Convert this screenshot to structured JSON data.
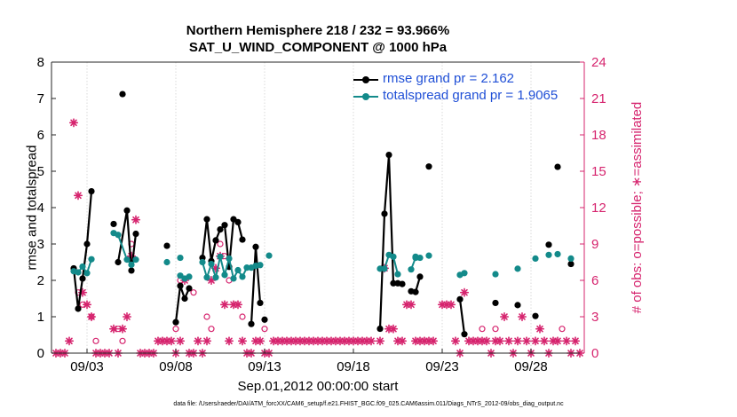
{
  "chart_data": {
    "type": "line",
    "title": "Northern Hemisphere 218 / 232 = 93.966%",
    "subtitle": "SAT_U_WIND_COMPONENT @ 1000 hPa",
    "xlabel": "Sep.01,2012 00:00:00 start",
    "ylabel": "rmse and totalspread",
    "y2label": "# of obs: o=possible; ∗=assimilated",
    "footer": "data file: /Users/raeder/DAI/ATM_forcXX/CAM6_setup/f.e21.FHIST_BGC.f09_025.CAM6assim.011/Diags_NTrS_2012-09/obs_diag_output.nc",
    "xlim": [
      0.5,
      30.5
    ],
    "ylim": [
      0,
      8
    ],
    "y2lim": [
      0,
      24
    ],
    "x_ticks": [
      2.5,
      7.5,
      12.5,
      17.5,
      22.5,
      27.5
    ],
    "x_tick_labels": [
      "09/03",
      "09/08",
      "09/13",
      "09/18",
      "09/23",
      "09/28"
    ],
    "y_ticks": [
      0,
      1,
      2,
      3,
      4,
      5,
      6,
      7,
      8
    ],
    "y2_ticks": [
      0,
      3,
      6,
      9,
      12,
      15,
      18,
      21,
      24
    ],
    "legend_position": "top-right",
    "series": [
      {
        "name": "rmse grand pr = 2.162",
        "color": "#000000",
        "segments": [
          [
            [
              1.75,
              2.33
            ],
            [
              2.0,
              1.22
            ],
            [
              2.25,
              2.05
            ],
            [
              2.5,
              3.0
            ],
            [
              2.75,
              4.45
            ]
          ],
          [
            [
              4.25,
              2.5
            ],
            [
              4.75,
              3.92
            ],
            [
              5.0,
              2.27
            ],
            [
              5.25,
              3.28
            ]
          ],
          [
            [
              7.5,
              0.85
            ],
            [
              7.75,
              1.85
            ],
            [
              8.0,
              1.5
            ],
            [
              8.25,
              1.78
            ]
          ],
          [
            [
              9.0,
              2.62
            ],
            [
              9.25,
              3.68
            ],
            [
              9.5,
              2.53
            ],
            [
              9.75,
              3.1
            ],
            [
              10.0,
              3.4
            ],
            [
              10.25,
              3.52
            ],
            [
              10.5,
              2.37
            ],
            [
              10.75,
              3.68
            ],
            [
              11.0,
              3.6
            ],
            [
              11.25,
              3.12
            ]
          ],
          [
            [
              11.75,
              0.8
            ],
            [
              12.0,
              2.92
            ],
            [
              12.25,
              1.38
            ]
          ],
          [
            [
              19.0,
              0.67
            ],
            [
              19.25,
              3.83
            ],
            [
              19.5,
              5.45
            ],
            [
              19.75,
              1.92
            ],
            [
              20.0,
              1.92
            ],
            [
              20.25,
              1.9
            ]
          ],
          [
            [
              20.75,
              1.7
            ],
            [
              21.0,
              1.68
            ],
            [
              21.25,
              2.1
            ]
          ],
          [
            [
              23.5,
              1.48
            ],
            [
              23.75,
              0.52
            ]
          ],
          [
            [
              29.75,
              2.45
            ]
          ]
        ],
        "isolated_points": [
          [
            4.0,
            3.55
          ],
          [
            4.5,
            7.12
          ],
          [
            7.0,
            2.95
          ],
          [
            21.75,
            5.13
          ],
          [
            12.5,
            0.92
          ],
          [
            25.5,
            1.38
          ],
          [
            26.75,
            1.32
          ],
          [
            27.75,
            1.02
          ],
          [
            28.5,
            2.98
          ],
          [
            29.0,
            5.12
          ]
        ]
      },
      {
        "name": "totalspread grand pr = 1.9065",
        "color": "#138a8a",
        "segments": [
          [
            [
              1.75,
              2.25
            ],
            [
              2.0,
              2.22
            ],
            [
              2.25,
              2.38
            ],
            [
              2.5,
              2.2
            ],
            [
              2.75,
              2.58
            ]
          ],
          [
            [
              4.25,
              3.25
            ],
            [
              4.75,
              2.57
            ],
            [
              5.0,
              2.43
            ],
            [
              5.25,
              2.57
            ]
          ],
          [
            [
              7.75,
              2.13
            ],
            [
              8.0,
              2.05
            ],
            [
              8.25,
              2.1
            ]
          ],
          [
            [
              9.0,
              2.5
            ],
            [
              9.25,
              2.08
            ],
            [
              9.5,
              2.45
            ],
            [
              9.75,
              2.08
            ],
            [
              10.0,
              2.65
            ],
            [
              10.25,
              2.15
            ],
            [
              10.5,
              2.6
            ],
            [
              10.75,
              2.05
            ],
            [
              11.0,
              2.28
            ],
            [
              11.25,
              2.1
            ],
            [
              11.5,
              2.35
            ],
            [
              11.75,
              2.35
            ],
            [
              12.0,
              2.4
            ],
            [
              12.25,
              2.42
            ]
          ],
          [
            [
              19.0,
              2.32
            ],
            [
              19.25,
              2.32
            ],
            [
              19.5,
              2.7
            ],
            [
              19.75,
              2.65
            ],
            [
              20.0,
              2.17
            ]
          ],
          [
            [
              20.75,
              2.3
            ],
            [
              21.0,
              2.62
            ],
            [
              21.25,
              2.62
            ]
          ],
          [
            [
              23.5,
              2.15
            ],
            [
              23.75,
              2.2
            ]
          ]
        ],
        "isolated_points": [
          [
            4.0,
            3.3
          ],
          [
            7.0,
            2.5
          ],
          [
            7.75,
            2.62
          ],
          [
            12.75,
            2.68
          ],
          [
            21.0,
            2.65
          ],
          [
            21.75,
            2.68
          ],
          [
            25.5,
            2.17
          ],
          [
            26.75,
            2.32
          ],
          [
            27.75,
            2.6
          ],
          [
            28.5,
            2.7
          ],
          [
            29.0,
            2.72
          ],
          [
            29.75,
            2.6
          ]
        ]
      }
    ],
    "obs_series": [
      {
        "name": "possible",
        "marker": "o",
        "color": "#d6246e",
        "points": [
          [
            2.0,
            5
          ],
          [
            2.25,
            4
          ],
          [
            2.75,
            3
          ],
          [
            3.0,
            1
          ],
          [
            4.25,
            2
          ],
          [
            4.5,
            1
          ],
          [
            5.0,
            9
          ],
          [
            7.5,
            2
          ],
          [
            7.75,
            6
          ],
          [
            8.5,
            5
          ],
          [
            9.25,
            3
          ],
          [
            9.5,
            2
          ],
          [
            10.0,
            9
          ],
          [
            10.25,
            8
          ],
          [
            10.5,
            6
          ],
          [
            11.25,
            3
          ],
          [
            12.5,
            2
          ],
          [
            24.75,
            2
          ],
          [
            25.5,
            2
          ],
          [
            29.25,
            2
          ]
        ]
      },
      {
        "name": "assimilated",
        "marker": "*",
        "color": "#d6246e",
        "points": [
          [
            0.75,
            0
          ],
          [
            1.0,
            0
          ],
          [
            1.25,
            0
          ],
          [
            1.5,
            1
          ],
          [
            1.75,
            19
          ],
          [
            2.0,
            13
          ],
          [
            2.25,
            5
          ],
          [
            2.5,
            4
          ],
          [
            2.75,
            3
          ],
          [
            3.0,
            0
          ],
          [
            3.25,
            0
          ],
          [
            3.5,
            0
          ],
          [
            3.75,
            0
          ],
          [
            4.0,
            2
          ],
          [
            4.25,
            0
          ],
          [
            4.5,
            2
          ],
          [
            4.75,
            3
          ],
          [
            5.0,
            8
          ],
          [
            5.25,
            11
          ],
          [
            5.5,
            0
          ],
          [
            5.75,
            0
          ],
          [
            6.0,
            0
          ],
          [
            6.25,
            0
          ],
          [
            6.5,
            1
          ],
          [
            6.75,
            1
          ],
          [
            7.0,
            1
          ],
          [
            7.25,
            1
          ],
          [
            7.5,
            0
          ],
          [
            7.75,
            1
          ],
          [
            8.0,
            6
          ],
          [
            8.25,
            0
          ],
          [
            8.5,
            0
          ],
          [
            8.75,
            1
          ],
          [
            9.0,
            0
          ],
          [
            9.25,
            1
          ],
          [
            9.5,
            6
          ],
          [
            9.75,
            7
          ],
          [
            10.0,
            8
          ],
          [
            10.25,
            4
          ],
          [
            10.5,
            1
          ],
          [
            10.75,
            4
          ],
          [
            11.0,
            4
          ],
          [
            11.25,
            1
          ],
          [
            11.5,
            0
          ],
          [
            11.75,
            0
          ],
          [
            12.0,
            1
          ],
          [
            12.25,
            1
          ],
          [
            12.5,
            0
          ],
          [
            12.75,
            0
          ],
          [
            13.0,
            1
          ],
          [
            13.25,
            1
          ],
          [
            13.5,
            1
          ],
          [
            13.75,
            1
          ],
          [
            14.0,
            1
          ],
          [
            14.25,
            1
          ],
          [
            14.5,
            1
          ],
          [
            14.75,
            1
          ],
          [
            15.0,
            1
          ],
          [
            15.25,
            1
          ],
          [
            15.5,
            1
          ],
          [
            15.75,
            1
          ],
          [
            16.0,
            1
          ],
          [
            16.25,
            1
          ],
          [
            16.5,
            1
          ],
          [
            16.75,
            1
          ],
          [
            17.0,
            1
          ],
          [
            17.25,
            1
          ],
          [
            17.5,
            1
          ],
          [
            17.75,
            1
          ],
          [
            18.0,
            1
          ],
          [
            18.25,
            1
          ],
          [
            18.5,
            1
          ],
          [
            19.0,
            1
          ],
          [
            19.25,
            7
          ],
          [
            19.5,
            2
          ],
          [
            19.75,
            2
          ],
          [
            20.0,
            1
          ],
          [
            20.25,
            1
          ],
          [
            20.5,
            4
          ],
          [
            20.75,
            4
          ],
          [
            21.0,
            1
          ],
          [
            21.25,
            1
          ],
          [
            21.5,
            1
          ],
          [
            21.75,
            1
          ],
          [
            22.0,
            1
          ],
          [
            22.5,
            4
          ],
          [
            22.75,
            4
          ],
          [
            23.0,
            4
          ],
          [
            23.25,
            1
          ],
          [
            23.5,
            0
          ],
          [
            23.75,
            5
          ],
          [
            24.0,
            1
          ],
          [
            24.25,
            1
          ],
          [
            24.5,
            1
          ],
          [
            24.75,
            1
          ],
          [
            25.0,
            1
          ],
          [
            25.25,
            0
          ],
          [
            25.5,
            1
          ],
          [
            25.75,
            1
          ],
          [
            26.0,
            3
          ],
          [
            26.25,
            1
          ],
          [
            26.5,
            0
          ],
          [
            26.75,
            1
          ],
          [
            27.0,
            3
          ],
          [
            27.25,
            1
          ],
          [
            27.5,
            0
          ],
          [
            27.75,
            1
          ],
          [
            28.0,
            2
          ],
          [
            28.25,
            1
          ],
          [
            28.5,
            0
          ],
          [
            28.75,
            1
          ],
          [
            29.0,
            1
          ],
          [
            29.5,
            1
          ],
          [
            29.75,
            0
          ],
          [
            30.0,
            1
          ],
          [
            30.25,
            0
          ]
        ]
      }
    ]
  }
}
